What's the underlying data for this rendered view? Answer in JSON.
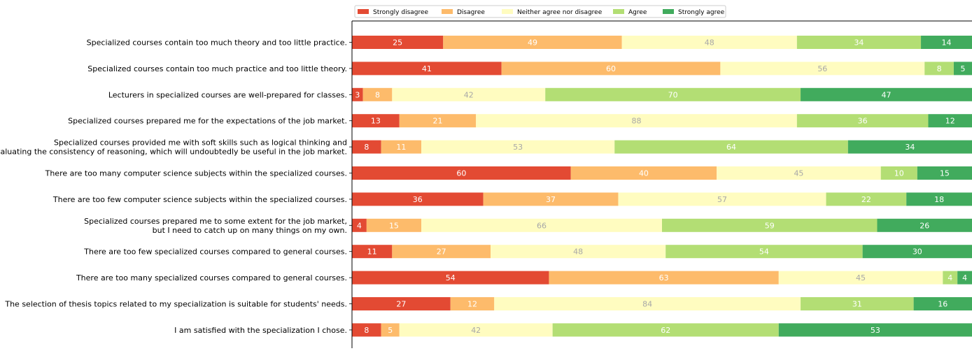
{
  "chart_data": {
    "type": "bar",
    "orientation": "horizontal",
    "stacked": true,
    "normalized": true,
    "legend_position": "top",
    "grid": false,
    "categories": [
      "Specialized courses contain too much theory and too little practice.",
      "Specialized courses contain too much practice and too little theory.",
      "Lecturers in specialized courses are well-prepared for classes.",
      "Specialized courses prepared me for the expectations of the job market.",
      "Specialized courses provided me with soft skills such as logical thinking and\nevaluating the consistency of reasoning, which will undoubtedly be useful in the job market.",
      "There are too many computer science subjects within the specialized courses.",
      "There are too few computer science subjects within the specialized courses.",
      "Specialized courses prepared me to some extent for the job market,\nbut I need to catch up on many things on my own.",
      "There are too few specialized courses compared to general courses.",
      "There are too many specialized courses compared to general courses.",
      "The selection of thesis topics related to my specialization is suitable for students' needs.",
      "I am satisfied with the specialization I chose."
    ],
    "series": [
      {
        "name": "Strongly disagree",
        "color": "#e34a33",
        "label_color": "#ffffff",
        "values": [
          25,
          41,
          3,
          13,
          8,
          60,
          36,
          4,
          11,
          54,
          27,
          8
        ]
      },
      {
        "name": "Disagree",
        "color": "#fdbb6b",
        "label_color": "#ffffff",
        "values": [
          49,
          60,
          8,
          21,
          11,
          40,
          37,
          15,
          27,
          63,
          12,
          5
        ]
      },
      {
        "name": "Neither agree nor disagree",
        "color": "#fffcc0",
        "label_color": "#a8a8a8",
        "values": [
          48,
          56,
          42,
          88,
          53,
          45,
          57,
          66,
          48,
          45,
          84,
          42
        ]
      },
      {
        "name": "Agree",
        "color": "#b3de74",
        "label_color": "#ffffff",
        "values": [
          34,
          8,
          70,
          36,
          64,
          10,
          22,
          59,
          54,
          4,
          31,
          62
        ]
      },
      {
        "name": "Strongly agree",
        "color": "#41ab5d",
        "label_color": "#ffffff",
        "values": [
          14,
          5,
          47,
          12,
          34,
          15,
          18,
          26,
          30,
          4,
          16,
          53
        ]
      }
    ]
  }
}
